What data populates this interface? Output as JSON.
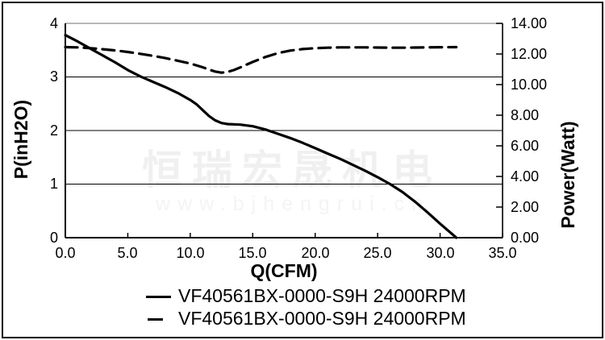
{
  "watermark": {
    "line1": "恒瑞宏晟机电",
    "line2": "www.bjhengrui.cn"
  },
  "chart_data": {
    "type": "line",
    "title": "",
    "grid": "horizontal-only",
    "legend_position": "bottom",
    "x_axis": {
      "label": "Q(CFM)",
      "min": 0,
      "max": 35,
      "tick_step": 5,
      "ticks": [
        "0.0",
        "5.0",
        "10.0",
        "15.0",
        "20.0",
        "25.0",
        "30.0",
        "35.0"
      ]
    },
    "y_axis_left": {
      "label": "P(inH2O)",
      "min": 0,
      "max": 4,
      "tick_step": 1,
      "ticks": [
        "4",
        "3",
        "2",
        "1",
        "0"
      ]
    },
    "y_axis_right": {
      "label": "Power(Watt)",
      "min": 0,
      "max": 14,
      "tick_step": 2,
      "ticks": [
        "14.00",
        "12.00",
        "10.00",
        "8.00",
        "6.00",
        "4.00",
        "2.00",
        "0.00"
      ]
    },
    "series": [
      {
        "name": "VF40561BX-0000-S9H 24000RPM",
        "line_style": "solid",
        "axis": "left",
        "units": "inH2O",
        "points": [
          [
            0,
            3.78
          ],
          [
            1,
            3.66
          ],
          [
            2,
            3.53
          ],
          [
            3,
            3.4
          ],
          [
            4,
            3.27
          ],
          [
            5,
            3.13
          ],
          [
            6,
            3.01
          ],
          [
            7,
            2.91
          ],
          [
            8,
            2.81
          ],
          [
            9,
            2.7
          ],
          [
            10,
            2.57
          ],
          [
            10.5,
            2.49
          ],
          [
            11,
            2.38
          ],
          [
            11.5,
            2.27
          ],
          [
            12,
            2.19
          ],
          [
            12.5,
            2.14
          ],
          [
            13,
            2.12
          ],
          [
            14,
            2.11
          ],
          [
            15,
            2.08
          ],
          [
            16,
            2.02
          ],
          [
            17,
            1.94
          ],
          [
            18,
            1.86
          ],
          [
            19,
            1.77
          ],
          [
            20,
            1.67
          ],
          [
            21,
            1.57
          ],
          [
            22,
            1.47
          ],
          [
            23,
            1.36
          ],
          [
            24,
            1.25
          ],
          [
            25,
            1.13
          ],
          [
            26,
            1.0
          ],
          [
            27,
            0.85
          ],
          [
            28,
            0.67
          ],
          [
            29,
            0.47
          ],
          [
            30,
            0.26
          ],
          [
            31.3,
            0.0
          ]
        ]
      },
      {
        "name": "VF40561BX-0000-S9H 24000RPM",
        "line_style": "dashed",
        "axis": "right",
        "units": "Watt",
        "points": [
          [
            0,
            12.45
          ],
          [
            1,
            12.43
          ],
          [
            2,
            12.38
          ],
          [
            3,
            12.31
          ],
          [
            4,
            12.23
          ],
          [
            5,
            12.13
          ],
          [
            6,
            12.01
          ],
          [
            7,
            11.88
          ],
          [
            8,
            11.73
          ],
          [
            9,
            11.56
          ],
          [
            10,
            11.38
          ],
          [
            11,
            11.13
          ],
          [
            11.5,
            10.98
          ],
          [
            12,
            10.85
          ],
          [
            12.5,
            10.78
          ],
          [
            13,
            10.83
          ],
          [
            13.5,
            10.95
          ],
          [
            14,
            11.12
          ],
          [
            15,
            11.48
          ],
          [
            16,
            11.8
          ],
          [
            17,
            12.05
          ],
          [
            18,
            12.22
          ],
          [
            19,
            12.32
          ],
          [
            20,
            12.38
          ],
          [
            21,
            12.41
          ],
          [
            22,
            12.43
          ],
          [
            23,
            12.43
          ],
          [
            24,
            12.43
          ],
          [
            25,
            12.42
          ],
          [
            26,
            12.41
          ],
          [
            27,
            12.41
          ],
          [
            28,
            12.42
          ],
          [
            29,
            12.43
          ],
          [
            30,
            12.44
          ],
          [
            31.3,
            12.45
          ]
        ]
      }
    ]
  },
  "colors": {
    "line": "#000000",
    "grid": "#000000",
    "plot_top_border": "#8c8c8c",
    "axis": "#000000",
    "watermark_cjk": "#f0f0f0",
    "watermark_url": "#f4f4f4",
    "background": "#ffffff",
    "frame_border": "#000000"
  }
}
